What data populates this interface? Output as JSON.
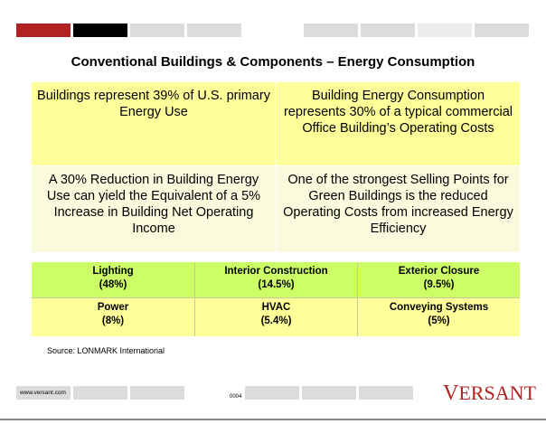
{
  "colors": {
    "accent_red": "#b22222",
    "bar_black": "#000000",
    "bar_gray": "#dcdcdc",
    "fact_yellow": "#ffff99",
    "fact_cream": "#fafadc",
    "comp_green": "#ccff66",
    "comp_yellow": "#ffff99"
  },
  "title": "Conventional Buildings & Components – Energy Consumption",
  "facts": [
    {
      "text": "Buildings represent 39% of U.S. primary Energy Use"
    },
    {
      "text": "Building Energy Consumption represents 30% of a typical commercial Office Building’s Operating Costs"
    },
    {
      "text": "A 30% Reduction in Building Energy Use can yield the Equivalent of a 5% Increase in Building Net Operating Income"
    },
    {
      "text": "One of the strongest Selling Points for Green Buildings is the reduced Operating Costs from increased Energy Efficiency"
    }
  ],
  "components": [
    {
      "name": "Lighting",
      "share": "(48%)"
    },
    {
      "name": "Interior Construction",
      "share": "(14.5%)"
    },
    {
      "name": "Exterior Closure",
      "share": "(9.5%)"
    },
    {
      "name": "Power",
      "share": "(8%)"
    },
    {
      "name": "HVAC",
      "share": "(5.4%)"
    },
    {
      "name": "Conveying Systems",
      "share": "(5%)"
    }
  ],
  "source": "Source: LONMARK International",
  "footer": {
    "url": "www.versant.com",
    "page_number": "0004",
    "logo_first": "V",
    "logo_rest": "ERSANT"
  }
}
